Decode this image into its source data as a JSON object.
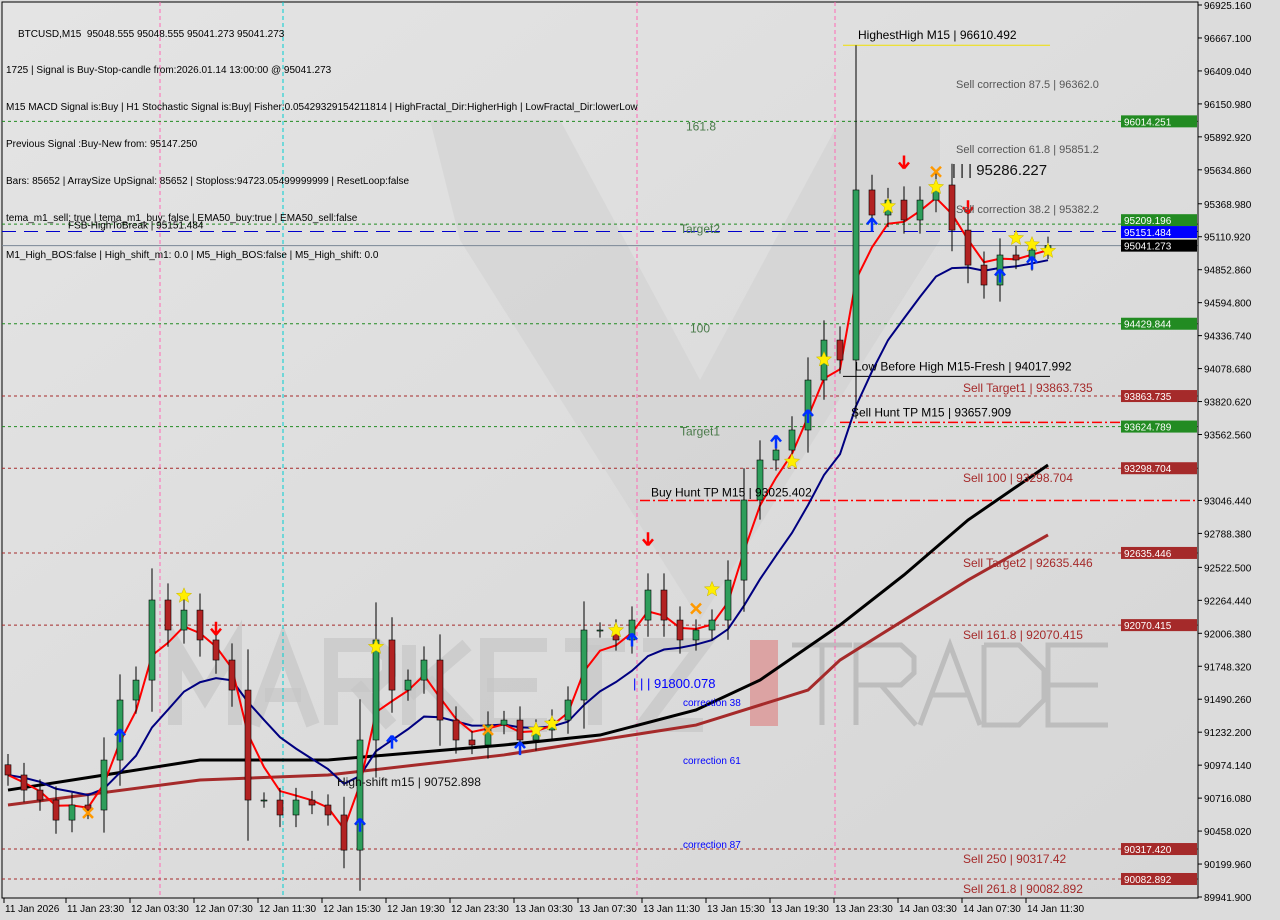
{
  "header": {
    "symbol_line": "BTCUSD,M15  95048.555 95048.555 95041.273 95041.273",
    "lines": [
      "1725 | Signal is Buy-Stop-candle from:2026.01.14 13:00:00 @ 95041.273",
      "M15 MACD Signal is:Buy | H1 Stochastic Signal is:Buy| Fisher:0.05429329154211814 | HighFractal_Dir:HigherHigh | LowFractal_Dir:lowerLow",
      "Previous Signal :Buy-New from: 95147.250",
      "Bars: 85652 | ArraySize UpSignal: 85652 | Stoploss:94723.05499999999 | ResetLoop:false",
      "tema_m1_sell: true | tema_m1_buy: false | EMA50_buy:true | EMA50_sell:false",
      "M1_High_BOS:false | High_shift_m1: 0.0 | M5_High_BOS:false | M5_High_shift: 0.0"
    ]
  },
  "watermark": {
    "left": "MARKETZ",
    "right": "TRADE"
  },
  "colors": {
    "background": "#dcdcdc",
    "bull": "#2e9e5b",
    "bear": "#b22222",
    "ema_fast": "#ff0000",
    "ema_slow": "#000080",
    "ma_black": "#000000",
    "ma_brown": "#a52a2a",
    "green_level": "#228b22",
    "brown_level": "#a52a2a",
    "blue_level": "#0000ff"
  },
  "chart_data": {
    "type": "candlestick",
    "symbol": "BTCUSD",
    "timeframe": "M15",
    "ylim": [
      89941.9,
      96925.16
    ],
    "y_ticks": [
      "96925.160",
      "96667.100",
      "96409.040",
      "96150.980",
      "95892.920",
      "95634.860",
      "95368.980",
      "95110.920",
      "94852.860",
      "94594.800",
      "94336.740",
      "94078.680",
      "93820.620",
      "93562.560",
      "93046.440",
      "92788.380",
      "92522.500",
      "92264.440",
      "92006.380",
      "91748.320",
      "91490.260",
      "91232.200",
      "90974.140",
      "90716.080",
      "90458.020",
      "90199.960",
      "89941.900"
    ],
    "x_ticks": [
      "11 Jan 2026",
      "11 Jan 23:30",
      "12 Jan 03:30",
      "12 Jan 07:30",
      "12 Jan 11:30",
      "12 Jan 15:30",
      "12 Jan 19:30",
      "12 Jan 23:30",
      "13 Jan 03:30",
      "13 Jan 07:30",
      "13 Jan 11:30",
      "13 Jan 15:30",
      "13 Jan 19:30",
      "13 Jan 23:30",
      "14 Jan 03:30",
      "14 Jan 07:30",
      "14 Jan 11:30"
    ],
    "closes": [
      90897,
      90779,
      90701,
      90544,
      90662,
      90623,
      91014,
      91484,
      91640,
      92267,
      92032,
      92188,
      91954,
      91797,
      91562,
      90701,
      90701,
      90584,
      90701,
      90662,
      90584,
      90309,
      91171,
      91954,
      91562,
      91640,
      91797,
      91327,
      91171,
      91132,
      91288,
      91327,
      91171,
      91249,
      91327,
      91484,
      92032,
      92032,
      91954,
      92110,
      92345,
      92110,
      91954,
      92032,
      92110,
      92423,
      93050,
      93363,
      93441,
      93598,
      93989,
      94302,
      94146,
      95477,
      95281,
      95398,
      95242,
      95398,
      95516,
      95163,
      94889,
      94733,
      94968,
      94929,
      95007,
      95041.273
    ],
    "ma_black": [
      [
        0,
        90779
      ],
      [
        12,
        91014
      ],
      [
        20,
        91014
      ],
      [
        31,
        91132
      ],
      [
        37,
        91210
      ],
      [
        43,
        91406
      ],
      [
        47,
        91640
      ],
      [
        52,
        92071
      ],
      [
        56,
        92463
      ],
      [
        60,
        92893
      ],
      [
        65,
        93324
      ]
    ],
    "ma_brown": [
      [
        0,
        90662
      ],
      [
        12,
        90858
      ],
      [
        20,
        90897
      ],
      [
        31,
        91054
      ],
      [
        37,
        91171
      ],
      [
        43,
        91288
      ],
      [
        50,
        91562
      ],
      [
        52,
        91797
      ],
      [
        56,
        92110
      ],
      [
        60,
        92423
      ],
      [
        65,
        92776
      ]
    ],
    "markers": {
      "star": [
        [
          11,
          92300
        ],
        [
          23,
          91900
        ],
        [
          33,
          91250
        ],
        [
          34,
          91300
        ],
        [
          38,
          92030
        ],
        [
          44,
          92350
        ],
        [
          49,
          93350
        ],
        [
          51,
          94150
        ],
        [
          55,
          95350
        ],
        [
          58,
          95500
        ],
        [
          63,
          95100
        ],
        [
          64,
          95050
        ],
        [
          65,
          95000
        ]
      ],
      "up_arrow": [
        [
          7,
          91200
        ],
        [
          22,
          90500
        ],
        [
          24,
          91150
        ],
        [
          32,
          91100
        ],
        [
          39,
          91950
        ],
        [
          48,
          93500
        ],
        [
          50,
          93700
        ],
        [
          54,
          95200
        ],
        [
          62,
          94800
        ],
        [
          64,
          94900
        ]
      ],
      "down_arrow": [
        [
          13,
          92050
        ],
        [
          40,
          92750
        ],
        [
          56,
          95700
        ],
        [
          60,
          95350
        ]
      ],
      "cross": [
        [
          5,
          90600
        ],
        [
          30,
          91250
        ],
        [
          43,
          92200
        ],
        [
          58,
          95620
        ]
      ]
    },
    "levels": [
      {
        "price": 96610.492,
        "kind": "yellow",
        "label": "HighestHigh   M15 | 96610.492"
      },
      {
        "price": 96014.251,
        "kind": "green",
        "label": "161.8",
        "tag": "96014.251"
      },
      {
        "price": 95209.196,
        "kind": "green",
        "label": "Target2",
        "tag": "95209.196"
      },
      {
        "price": 95151.484,
        "kind": "blue",
        "label": "FSB-HighToBreak | 95151.484",
        "tag": "95151.484"
      },
      {
        "price": 95041.273,
        "kind": "current",
        "label": "",
        "tag": "95041.273"
      },
      {
        "price": 94429.844,
        "kind": "green",
        "label": "100",
        "tag": "94429.844"
      },
      {
        "price": 94017.992,
        "kind": "black",
        "label": "Low Before High   M15-Fresh | 94017.992"
      },
      {
        "price": 93863.735,
        "kind": "brown",
        "label": "Sell Target1 | 93863.735",
        "tag": "93863.735"
      },
      {
        "price": 93657.909,
        "kind": "reddash",
        "label": "Sell Hunt TP M15 | 93657.909"
      },
      {
        "price": 93624.789,
        "kind": "green",
        "label": "Target1",
        "tag": "93624.789"
      },
      {
        "price": 93298.704,
        "kind": "brown",
        "label": "Sell 100 | 93298.704",
        "tag": "93298.704"
      },
      {
        "price": 93025.402,
        "kind": "reddash2",
        "label": "Buy Hunt TP M15 | 93025.402"
      },
      {
        "price": 92635.446,
        "kind": "brown",
        "label": "Sell Target2 | 92635.446",
        "tag": "92635.446"
      },
      {
        "price": 92070.415,
        "kind": "brown",
        "label": "Sell 161.8 | 92070.415",
        "tag": "92070.415"
      },
      {
        "price": 90317.42,
        "kind": "brown",
        "label": "Sell  250 | 90317.42",
        "tag": "90317.420"
      },
      {
        "price": 90082.892,
        "kind": "brown",
        "label": "Sell  261.8 | 90082.892",
        "tag": "90082.892"
      }
    ],
    "annotations": [
      {
        "text": "Sell correction 87.5 | 96362.0",
        "price": 96362.0,
        "style": "gray"
      },
      {
        "text": "Sell correction 61.8 | 95851.2",
        "price": 95851.2,
        "style": "gray"
      },
      {
        "text": "| | | 95286.227",
        "price": 95286.227,
        "style": "big"
      },
      {
        "text": "Sell correction 38.2 | 95382.2",
        "price": 95382.2,
        "style": "gray"
      },
      {
        "text": "High-shift m15 | 90752.898",
        "price": 90752.898,
        "style": "dark"
      },
      {
        "text": "| | | 91800.078",
        "price": 91800.078,
        "style": "blue"
      },
      {
        "text": "correction 38",
        "price": 91800.078,
        "style": "bluesmall"
      },
      {
        "text": "correction 61",
        "style": "bluesmall"
      },
      {
        "text": "correction 87",
        "style": "bluesmall"
      }
    ]
  }
}
